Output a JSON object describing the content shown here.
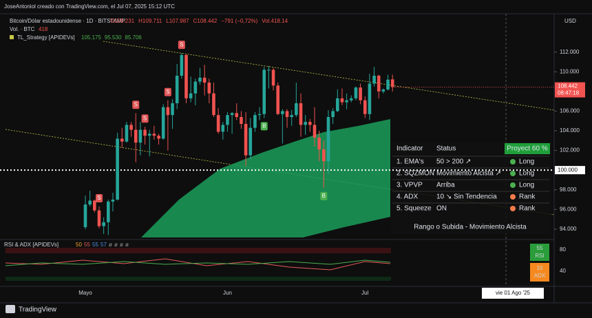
{
  "header": {
    "attribution": "JoseAntoniol  creado con TradingView.com, el Jul 07, 2025 15:12 UTC",
    "symbol": "Bitcoin/Dólar estadounidense · 1D · BITSTAMP",
    "ohlc": [
      "O109.231",
      "H109.711",
      "L107.987",
      "C108.442",
      "−791 (−0,72%)",
      "Vol.418.14"
    ],
    "volume_label": "Vol. · BTC",
    "volume_value": "418",
    "strategy_name": "TL_Strategy [APIDEVs]",
    "strategy_values": [
      "105.175",
      "95.530",
      "85.706"
    ]
  },
  "chart_data": {
    "type": "candlestick",
    "currency": "USD",
    "categories": [
      "Mayo",
      null,
      null,
      null,
      null,
      null,
      null,
      null,
      null,
      null,
      null,
      null,
      null,
      null,
      null,
      null,
      null,
      null,
      null,
      null,
      null,
      null,
      null,
      null,
      null,
      null,
      null,
      null,
      null,
      null,
      null,
      "Jun",
      null,
      null,
      null,
      null,
      null,
      null,
      null,
      null,
      null,
      null,
      null,
      null,
      null,
      null,
      null,
      null,
      null,
      null,
      null,
      null,
      null,
      null,
      null,
      null,
      null,
      null,
      null,
      null,
      null,
      "Jul",
      null,
      null,
      null,
      null,
      null,
      null
    ],
    "open": [
      94.2,
      96.5,
      96.9,
      95.9,
      94.3,
      94.7,
      96.8,
      97.0,
      103.2,
      102.9,
      104.6,
      104.1,
      102.8,
      104.1,
      103.5,
      103.7,
      103.5,
      103.2,
      106.4,
      105.6,
      106.8,
      109.6,
      111.7,
      107.3,
      107.8,
      109.0,
      109.4,
      108.9,
      107.8,
      105.6,
      103.9,
      104.6,
      105.6,
      105.8,
      105.4,
      104.7,
      101.5,
      104.3,
      105.6,
      105.7,
      110.2,
      110.2,
      108.6,
      105.7,
      106.0,
      105.4,
      105.6,
      106.8,
      104.6,
      104.9,
      104.6,
      103.3,
      102.1,
      100.9,
      105.4,
      106.0,
      107.3,
      106.9,
      107.1,
      107.3,
      108.4,
      107.1,
      105.7,
      108.8,
      109.6,
      108.0,
      108.2,
      109.231
    ],
    "high": [
      97.4,
      97.9,
      97.0,
      96.3,
      95.2,
      97.0,
      97.7,
      103.8,
      104.3,
      104.9,
      104.9,
      105.8,
      104.9,
      104.4,
      104.1,
      104.5,
      103.7,
      106.7,
      107.1,
      107.2,
      110.8,
      111.9,
      111.8,
      109.5,
      109.3,
      110.4,
      110.7,
      109.3,
      108.9,
      106.3,
      104.9,
      105.9,
      105.9,
      106.8,
      106.0,
      105.9,
      105.3,
      105.9,
      106.4,
      110.5,
      110.6,
      110.4,
      108.9,
      106.2,
      106.2,
      106.1,
      108.9,
      107.8,
      105.6,
      105.2,
      106.4,
      104.0,
      103.0,
      106.1,
      106.3,
      108.2,
      108.3,
      107.8,
      107.6,
      108.5,
      108.8,
      107.5,
      109.8,
      110.5,
      109.7,
      108.3,
      109.7,
      109.711
    ],
    "low": [
      94.0,
      96.3,
      95.7,
      94.1,
      93.5,
      93.4,
      95.8,
      96.9,
      102.3,
      102.8,
      103.4,
      100.8,
      101.5,
      102.6,
      101.4,
      103.1,
      102.6,
      103.1,
      102.0,
      104.2,
      106.2,
      109.3,
      106.8,
      106.9,
      106.6,
      108.7,
      107.6,
      106.8,
      105.4,
      103.7,
      103.1,
      103.9,
      103.7,
      105.1,
      104.2,
      100.4,
      101.1,
      103.9,
      105.1,
      105.3,
      108.3,
      108.1,
      105.6,
      102.7,
      104.3,
      104.5,
      105.4,
      103.4,
      103.6,
      103.9,
      102.4,
      100.9,
      98.2,
      99.6,
      104.7,
      105.9,
      106.6,
      106.2,
      106.9,
      107.1,
      106.7,
      105.3,
      105.1,
      108.5,
      107.3,
      107.8,
      108.1,
      107.987
    ],
    "close": [
      96.5,
      96.9,
      95.9,
      94.3,
      94.7,
      96.8,
      97.0,
      103.2,
      102.9,
      104.6,
      104.1,
      102.8,
      104.1,
      103.5,
      103.7,
      103.5,
      103.2,
      106.4,
      105.6,
      106.8,
      109.6,
      111.7,
      107.3,
      107.8,
      109.0,
      109.4,
      108.9,
      107.8,
      105.6,
      103.9,
      104.6,
      105.6,
      105.8,
      105.4,
      104.7,
      101.5,
      104.3,
      105.6,
      105.7,
      110.2,
      110.2,
      108.6,
      105.7,
      106.0,
      105.4,
      105.6,
      106.8,
      104.6,
      104.9,
      104.6,
      103.3,
      102.1,
      100.9,
      105.4,
      106.0,
      107.3,
      106.9,
      107.1,
      107.3,
      108.4,
      107.1,
      105.7,
      108.8,
      109.6,
      108.0,
      108.2,
      109.2,
      108.442
    ],
    "up_color": "#26a69a",
    "down_color": "#f05350",
    "ylim": [
      93.15,
      115.9
    ],
    "yticks": [
      {
        "value": 94,
        "label": "94.000"
      },
      {
        "value": 96,
        "label": "96.000"
      },
      {
        "value": 98,
        "label": "98.000"
      },
      {
        "value": 102,
        "label": "102.000"
      },
      {
        "value": 104,
        "label": "104.000"
      },
      {
        "value": 106,
        "label": "106.000"
      },
      {
        "value": 110,
        "label": "110.000"
      },
      {
        "value": 112,
        "label": "112.000"
      }
    ],
    "current_price": {
      "value": 108.442,
      "label": "108.442",
      "countdown": "08:47:18"
    },
    "level": {
      "value": 100,
      "label": "100.000"
    },
    "signals": [
      {
        "text": "S",
        "candle": 3
      },
      {
        "text": "S",
        "candle": 11
      },
      {
        "text": "S",
        "candle": 13
      },
      {
        "text": "S",
        "candle": 18
      },
      {
        "text": "S",
        "candle": 21
      },
      {
        "text": "B",
        "candle": 39
      },
      {
        "text": "B",
        "candle": 52
      }
    ],
    "future_date_label": "vie 01 Ago '25"
  },
  "indicator_table": {
    "headers": [
      "Indicator",
      "Status"
    ],
    "badge": "Proyect 60 %",
    "rows": [
      [
        "1. EMA's",
        "50 > 200 ↗",
        "Long"
      ],
      [
        "2. SQZMON",
        "Movimiento Alcista ↗",
        "Long"
      ],
      [
        "3. VPVP",
        "Arriba",
        "Long"
      ],
      [
        "4. ADX",
        "10 ↘ Sin Tendencia",
        "Rank"
      ],
      [
        "5. Squeeze",
        "ON",
        "Rank"
      ]
    ],
    "dot_colors": [
      "#4caf50",
      "#4caf50",
      "#4caf50",
      "#f57c4a",
      "#f57c4a"
    ],
    "footer": "Rango o Subida - Movimiento Alcista"
  },
  "rsi_panel": {
    "title": "RSI & ADX [APIDEVs]",
    "values": [
      "50",
      "55",
      "55",
      "57",
      "ø",
      "ø",
      "ø",
      "ø"
    ],
    "ticks": [
      "80",
      "40"
    ],
    "rsi": {
      "value": "55",
      "label": "RSI"
    },
    "adx": {
      "value": "10",
      "label": "ADX"
    }
  },
  "footer": {
    "brand": "TradingView"
  }
}
